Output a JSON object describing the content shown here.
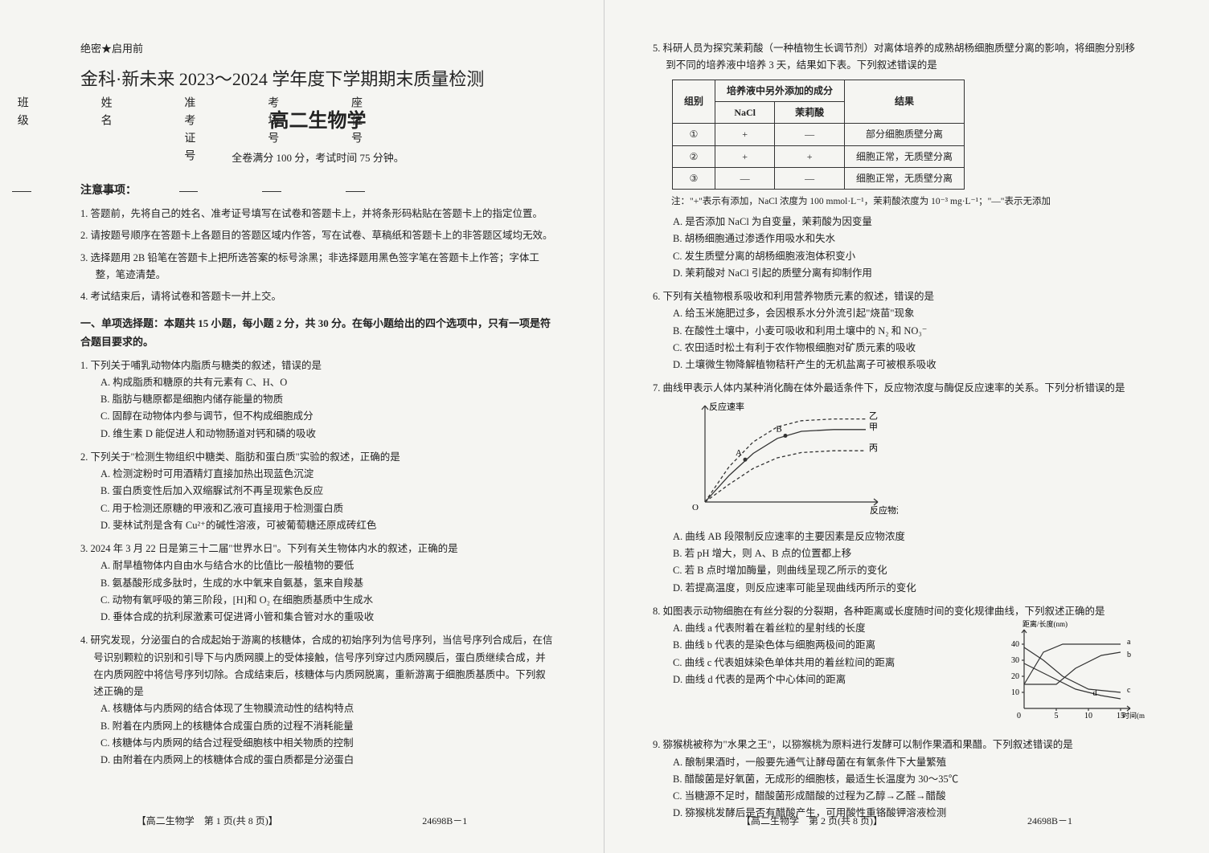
{
  "confidential": "绝密★启用前",
  "title_main": "金科·新未来 2023～2024 学年度下学期期末质量检测",
  "subtitle": "高二生物学",
  "score_time": "全卷满分 100 分，考试时间 75 分钟。",
  "side_labels": [
    "座位号",
    "考场号",
    "准考证号",
    "姓名",
    "班级"
  ],
  "notice_hdr": "注意事项：",
  "notices": [
    "1. 答题前，先将自己的姓名、准考证号填写在试卷和答题卡上，并将条形码粘贴在答题卡上的指定位置。",
    "2. 请按题号顺序在答题卡上各题目的答题区域内作答，写在试卷、草稿纸和答题卡上的非答题区域均无效。",
    "3. 选择题用 2B 铅笔在答题卡上把所选答案的标号涂黑；非选择题用黑色签字笔在答题卡上作答；字体工整，笔迹清楚。",
    "4. 考试结束后，请将试卷和答题卡一并上交。"
  ],
  "section_hdr": "一、单项选择题：本题共 15 小题，每小题 2 分，共 30 分。在每小题给出的四个选项中，只有一项是符合题目要求的。",
  "questions_left": [
    {
      "num": "1",
      "stem": "下列关于哺乳动物体内脂质与糖类的叙述，错误的是",
      "opts": [
        "A. 构成脂质和糖原的共有元素有 C、H、O",
        "B. 脂肪与糖原都是细胞内储存能量的物质",
        "C. 固醇在动物体内参与调节，但不构成细胞成分",
        "D. 维生素 D 能促进人和动物肠道对钙和磷的吸收"
      ]
    },
    {
      "num": "2",
      "stem": "下列关于\"检测生物组织中糖类、脂肪和蛋白质\"实验的叙述，正确的是",
      "opts": [
        "A. 检测淀粉时可用酒精灯直接加热出现蓝色沉淀",
        "B. 蛋白质变性后加入双缩脲试剂不再呈现紫色反应",
        "C. 用于检测还原糖的甲液和乙液可直接用于检测蛋白质",
        "D. 斐林试剂是含有 Cu²⁺的碱性溶液，可被葡萄糖还原成砖红色"
      ]
    },
    {
      "num": "3",
      "stem": "2024 年 3 月 22 日是第三十二届\"世界水日\"。下列有关生物体内水的叙述，正确的是",
      "opts": [
        "A. 耐旱植物体内自由水与结合水的比值比一般植物的要低",
        "B. 氨基酸形成多肽时，生成的水中氧来自氨基，氢来自羧基",
        "C. 动物有氧呼吸的第三阶段，[H]和 O₂ 在细胞质基质中生成水",
        "D. 垂体合成的抗利尿激素可促进肾小管和集合管对水的重吸收"
      ]
    },
    {
      "num": "4",
      "stem": "研究发现，分泌蛋白的合成起始于游离的核糖体，合成的初始序列为信号序列，当信号序列合成后，在信号识别颗粒的识别和引导下与内质网膜上的受体接触，信号序列穿过内质网膜后，蛋白质继续合成，并在内质网腔中将信号序列切除。合成结束后，核糖体与内质网脱离，重新游离于细胞质基质中。下列叙述正确的是",
      "opts": [
        "A. 核糖体与内质网的结合体现了生物膜流动性的结构特点",
        "B. 附着在内质网上的核糖体合成蛋白质的过程不消耗能量",
        "C. 核糖体与内质网的结合过程受细胞核中相关物质的控制",
        "D. 由附着在内质网上的核糖体合成的蛋白质都是分泌蛋白"
      ]
    }
  ],
  "q5": {
    "stem": "5. 科研人员为探究茉莉酸（一种植物生长调节剂）对离体培养的成熟胡杨细胞质壁分离的影响，将细胞分别移到不同的培养液中培养 3 天，结果如下表。下列叙述错误的是",
    "note": "注：\"+\"表示有添加，NaCl 浓度为 100 mmol·L⁻¹，茉莉酸浓度为 10⁻³ mg·L⁻¹；\"—\"表示无添加",
    "table": {
      "hdr1": [
        "组别",
        "培养液中另外添加的成分",
        "结果"
      ],
      "hdr2": [
        "NaCl",
        "茉莉酸"
      ],
      "rows": [
        [
          "①",
          "+",
          "—",
          "部分细胞质壁分离"
        ],
        [
          "②",
          "+",
          "+",
          "细胞正常，无质壁分离"
        ],
        [
          "③",
          "—",
          "—",
          "细胞正常，无质壁分离"
        ]
      ]
    },
    "opts": [
      "A. 是否添加 NaCl 为自变量，茉莉酸为因变量",
      "B. 胡杨细胞通过渗透作用吸水和失水",
      "C. 发生质壁分离的胡杨细胞液泡体积变小",
      "D. 茉莉酸对 NaCl 引起的质壁分离有抑制作用"
    ]
  },
  "q6": {
    "stem": "6. 下列有关植物根系吸收和利用营养物质元素的叙述，错误的是",
    "opts": [
      "A. 给玉米施肥过多，会因根系水分外流引起\"烧苗\"现象",
      "B. 在酸性土壤中，小麦可吸收和利用土壤中的 N₂ 和 NO₃⁻",
      "C. 农田适时松土有利于农作物根细胞对矿质元素的吸收",
      "D. 土壤微生物降解植物秸秆产生的无机盐离子可被根系吸收"
    ]
  },
  "q7": {
    "stem": "7. 曲线甲表示人体内某种消化酶在体外最适条件下，反应物浓度与酶促反应速率的关系。下列分析错误的是",
    "chart": {
      "type": "line",
      "xlabel": "反应物浓度",
      "ylabel": "反应速率",
      "labels": [
        "甲",
        "乙",
        "丙"
      ],
      "points": [
        "A",
        "B"
      ],
      "x_range": [
        0,
        100
      ],
      "y_range": [
        0,
        100
      ],
      "axis_color": "#333",
      "line_color": "#333",
      "curve_main": [
        [
          0,
          0
        ],
        [
          15,
          30
        ],
        [
          30,
          55
        ],
        [
          45,
          72
        ],
        [
          60,
          80
        ],
        [
          80,
          82
        ],
        [
          100,
          82
        ]
      ],
      "curve_up": [
        [
          0,
          0
        ],
        [
          15,
          40
        ],
        [
          30,
          68
        ],
        [
          45,
          85
        ],
        [
          60,
          92
        ],
        [
          80,
          94
        ],
        [
          100,
          94
        ]
      ],
      "curve_down": [
        [
          0,
          0
        ],
        [
          15,
          20
        ],
        [
          30,
          38
        ],
        [
          45,
          50
        ],
        [
          60,
          56
        ],
        [
          80,
          58
        ],
        [
          100,
          58
        ]
      ],
      "pt_A": [
        25,
        48
      ],
      "pt_B": [
        50,
        75
      ]
    },
    "opts": [
      "A. 曲线 AB 段限制反应速率的主要因素是反应物浓度",
      "B. 若 pH 增大，则 A、B 点的位置都上移",
      "C. 若 B 点时增加酶量，则曲线呈现乙所示的变化",
      "D. 若提高温度，则反应速率可能呈现曲线丙所示的变化"
    ]
  },
  "q8": {
    "stem": "8. 如图表示动物细胞在有丝分裂的分裂期，各种距离或长度随时间的变化规律曲线，下列叙述正确的是",
    "chart": {
      "type": "line",
      "xlabel": "时间(min)",
      "ylabel": "距离/长度(nm)",
      "labels": [
        "a",
        "b",
        "c",
        "d"
      ],
      "xticks": [
        0,
        5,
        10,
        15
      ],
      "yticks": [
        10,
        20,
        30,
        40
      ],
      "axis_color": "#333",
      "line_color": "#333",
      "a": [
        [
          0,
          15
        ],
        [
          3,
          35
        ],
        [
          6,
          40
        ],
        [
          10,
          40
        ],
        [
          15,
          40
        ]
      ],
      "b": [
        [
          0,
          15
        ],
        [
          5,
          15
        ],
        [
          8,
          25
        ],
        [
          12,
          33
        ],
        [
          15,
          35
        ]
      ],
      "c": [
        [
          0,
          38
        ],
        [
          3,
          30
        ],
        [
          6,
          20
        ],
        [
          10,
          12
        ],
        [
          15,
          10
        ]
      ],
      "d": [
        [
          0,
          28
        ],
        [
          4,
          20
        ],
        [
          8,
          12
        ],
        [
          12,
          8
        ],
        [
          15,
          6
        ]
      ]
    },
    "opts": [
      "A. 曲线 a 代表附着在着丝粒的星射线的长度",
      "B. 曲线 b 代表的是染色体与细胞两极间的距离",
      "C. 曲线 c 代表姐妹染色单体共用的着丝粒间的距离",
      "D. 曲线 d 代表的是两个中心体间的距离"
    ]
  },
  "q9": {
    "stem": "9. 猕猴桃被称为\"水果之王\"，以猕猴桃为原料进行发酵可以制作果酒和果醋。下列叙述错误的是",
    "opts": [
      "A. 酿制果酒时，一般要先通气让酵母菌在有氧条件下大量繁殖",
      "B. 醋酸菌是好氧菌，无成形的细胞核，最适生长温度为 30～35℃",
      "C. 当糖源不足时，醋酸菌形成醋酸的过程为乙醇→乙醛→醋酸",
      "D. 猕猴桃发酵后是否有醋酸产生，可用酸性重铬酸钾溶液检测"
    ]
  },
  "footer": {
    "left_page": "【高二生物学　第 1 页(共 8 页)】",
    "right_page": "【高二生物学　第 2 页(共 8 页)】",
    "code": "24698B－1"
  }
}
